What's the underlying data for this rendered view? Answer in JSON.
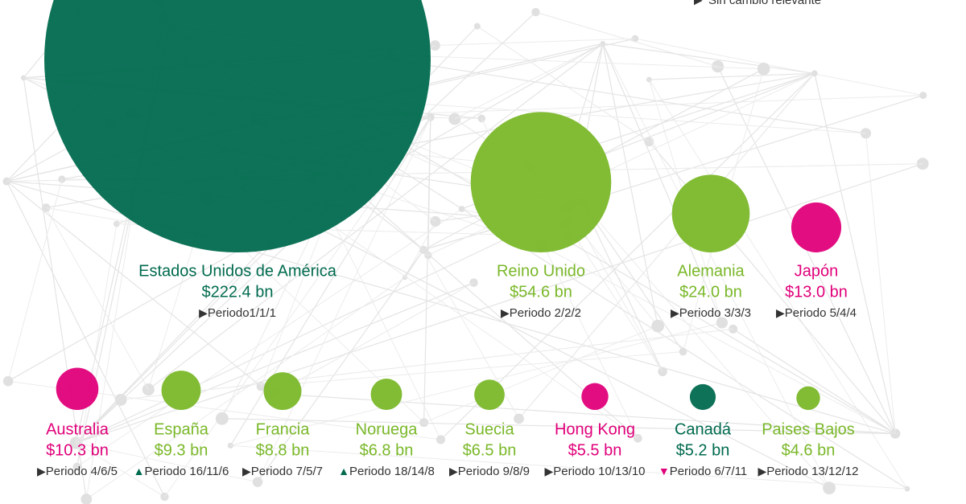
{
  "chart_data": {
    "type": "bubble",
    "legend": [
      {
        "marker": "▶",
        "color": "#333333",
        "label": "Sin cambio relevante"
      }
    ],
    "categories": [
      "Estados Unidos de América",
      "Reino Unido",
      "Alemania",
      "Japón",
      "Australia",
      "España",
      "Francia",
      "Noruega",
      "Suecia",
      "Hong Kong",
      "Canadá",
      "Paises Bajos"
    ],
    "values": [
      222.4,
      54.6,
      24.0,
      13.0,
      10.3,
      9.3,
      8.8,
      6.8,
      6.5,
      5.5,
      5.2,
      4.6
    ],
    "value_labels": [
      "$222.4 bn",
      "$54.6 bn",
      "$24.0 bn",
      "$13.0 bn",
      "$10.3 bn",
      "$9.3 bn",
      "$8.8 bn",
      "$6.8 bn",
      "$6.5 bn",
      "$5.5 bn",
      "$5.2 bn",
      "$4.6 bn"
    ],
    "colors": [
      "#006a4e",
      "#7ab829",
      "#7ab829",
      "#e0007a",
      "#e0007a",
      "#7ab829",
      "#7ab829",
      "#7ab829",
      "#7ab829",
      "#e0007a",
      "#006a4e",
      "#7ab829"
    ],
    "periods": [
      "Periodo1/1/1",
      "Periodo 2/2/2",
      "Periodo 3/3/3",
      "Periodo 5/4/4",
      "Periodo 4/6/5",
      "Periodo 16/11/6",
      "Periodo 7/5/7",
      "Periodo 18/14/8",
      "Periodo 9/8/9",
      "Periodo 10/13/10",
      "Periodo 6/7/11",
      "Periodo 13/12/12"
    ],
    "markers": [
      "▶",
      "▶",
      "▶",
      "▶",
      "▶",
      "▲",
      "▶",
      "▲",
      "▶",
      "▶",
      "▼",
      "▶"
    ],
    "marker_colors": [
      "#333333",
      "#333333",
      "#333333",
      "#333333",
      "#333333",
      "#006a4e",
      "#333333",
      "#006a4e",
      "#333333",
      "#333333",
      "#e0007a",
      "#333333"
    ]
  }
}
